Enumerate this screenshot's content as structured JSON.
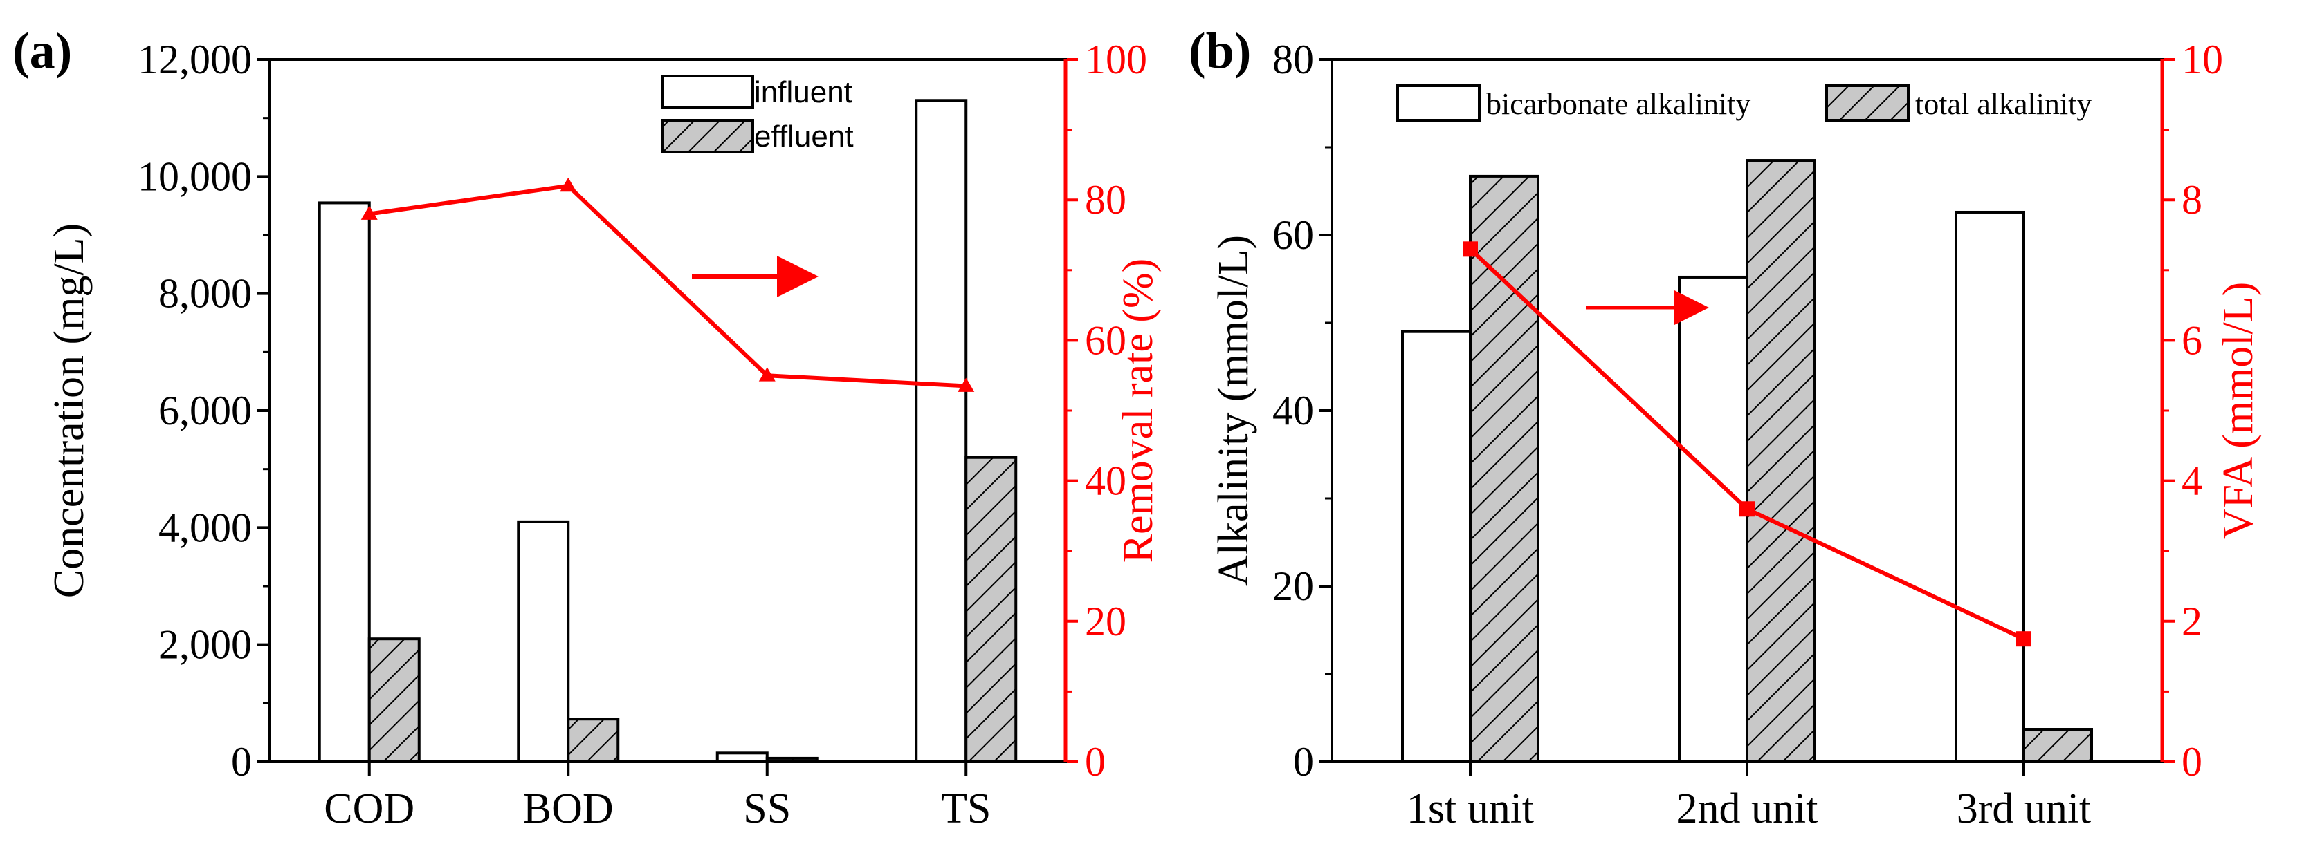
{
  "colors": {
    "axis": "#000000",
    "accent": "#ff0000",
    "bar_fill_a": "#ffffff",
    "bar_fill_b": "#c8c8c8"
  },
  "chart_data": [
    {
      "panel_label": "(a)",
      "type": "bar",
      "categories": [
        "COD",
        "BOD",
        "SS",
        "TS"
      ],
      "series": [
        {
          "name": "influent",
          "values": [
            9550,
            4100,
            150,
            11300
          ],
          "pattern": "plain"
        },
        {
          "name": "effluent",
          "values": [
            2100,
            730,
            60,
            5200
          ],
          "pattern": "hatched"
        }
      ],
      "line_series": {
        "name": "Removal rate",
        "values": [
          78,
          82,
          55,
          53.5
        ],
        "marker": "triangle",
        "axis": "right"
      },
      "ylabel": "Concentration (mg/L)",
      "ylim": [
        0,
        12000
      ],
      "yticks": [
        0,
        2000,
        4000,
        6000,
        8000,
        10000,
        12000
      ],
      "ytick_labels": [
        "0",
        "2,000",
        "4,000",
        "6,000",
        "8,000",
        "10,000",
        "12,000"
      ],
      "y2label": "Removal rate (%)",
      "y2lim": [
        0,
        100
      ],
      "y2ticks": [
        0,
        20,
        40,
        60,
        80,
        100
      ],
      "y2tick_labels": [
        "0",
        "20",
        "40",
        "60",
        "80",
        "100"
      ],
      "legend_position": "top-right",
      "annotation": "arrow pointing to right axis"
    },
    {
      "panel_label": "(b)",
      "type": "bar",
      "categories": [
        "1st unit",
        "2nd unit",
        "3rd unit"
      ],
      "series": [
        {
          "name": "bicarbonate alkalinity",
          "values": [
            49,
            55.2,
            62.6
          ],
          "pattern": "plain"
        },
        {
          "name": "total alkalinity",
          "values": [
            66.7,
            68.5,
            3.7
          ],
          "pattern": "hatched"
        }
      ],
      "line_series": {
        "name": "VFA",
        "values": [
          7.3,
          3.6,
          1.75
        ],
        "marker": "square",
        "axis": "right"
      },
      "ylabel": "Alkalinity (mmol/L)",
      "ylim": [
        0,
        80
      ],
      "yticks": [
        0,
        20,
        40,
        60,
        80
      ],
      "ytick_labels": [
        "0",
        "20",
        "40",
        "60",
        "80"
      ],
      "y2label": "VFA (mmol/L)",
      "y2lim": [
        0,
        10
      ],
      "y2ticks": [
        0,
        2,
        4,
        6,
        8,
        10
      ],
      "y2tick_labels": [
        "0",
        "2",
        "4",
        "6",
        "8",
        "10"
      ],
      "legend_position": "top",
      "annotation": "arrow pointing to right axis"
    }
  ]
}
